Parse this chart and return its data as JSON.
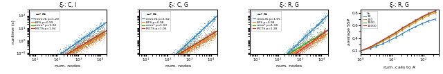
{
  "panels": [
    {
      "title": "$\\xi_F$: C, I",
      "xlabel": "num. nodes",
      "ylabel": "runtime (s)",
      "legend_title": "ax$^p$ fit",
      "lines": [
        {
          "label": "retro-fb p=1.20",
          "color": "#1f77b4",
          "p": 1.2,
          "a": 0.0002
        },
        {
          "label": "BFS p=0.99",
          "color": "#ff7f0e",
          "p": 0.99,
          "a": 0.0002
        },
        {
          "label": "retro* p=1.04",
          "color": "#2ca02c",
          "p": 1.04,
          "a": 0.0002
        },
        {
          "label": "MCTS p=1.04",
          "color": "#d62728",
          "p": 1.04,
          "a": 0.0002
        }
      ],
      "xlim": [
        5,
        20000
      ],
      "ylim": [
        0.08,
        300
      ]
    },
    {
      "title": "$\\xi_F$: C, G",
      "xlabel": "num. nodes",
      "ylabel": "runtime (s)",
      "legend_title": "ax$^p$ fit",
      "lines": [
        {
          "label": "retro-fb p=1.62",
          "color": "#1f77b4",
          "p": 1.62,
          "a": 1e-05
        },
        {
          "label": "BFS p=0.98",
          "color": "#ff7f0e",
          "p": 0.98,
          "a": 0.0002
        },
        {
          "label": "retro* p=1.03",
          "color": "#2ca02c",
          "p": 1.03,
          "a": 0.0002
        },
        {
          "label": "MCTS p=1.06",
          "color": "#d62728",
          "p": 1.06,
          "a": 0.00015
        }
      ],
      "xlim": [
        5,
        20000
      ],
      "ylim": [
        0.08,
        300
      ]
    },
    {
      "title": "$\\xi_F$: R, G",
      "xlabel": "num. nodes",
      "ylabel": "runtime (s)",
      "legend_title": "ax$^p$ fit",
      "lines": [
        {
          "label": "retro-fb p=1.65",
          "color": "#1f77b4",
          "p": 1.65,
          "a": 8e-06
        },
        {
          "label": "BFS p=0.98",
          "color": "#ff7f0e",
          "p": 0.98,
          "a": 0.0002
        },
        {
          "label": "retro* p=1.04",
          "color": "#2ca02c",
          "p": 1.04,
          "a": 0.0002
        },
        {
          "label": "MCTS p=1.28",
          "color": "#d62728",
          "p": 1.28,
          "a": 2e-05
        }
      ],
      "xlim": [
        5,
        20000
      ],
      "ylim": [
        0.08,
        300
      ]
    }
  ],
  "panel4": {
    "title": "$\\xi_F$: R, G",
    "xlabel": "num. calls to $R$",
    "ylabel": "average SSP",
    "xlim": [
      1.0,
      300
    ],
    "ylim": [
      0.15,
      0.85
    ],
    "k_values": [
      10,
      100,
      1000,
      10000
    ],
    "colors": [
      "#1f77b4",
      "#ff7f0e",
      "#2ca02c",
      "#d62728"
    ],
    "x_points": [
      1,
      2,
      3,
      5,
      8,
      13,
      21,
      34,
      55,
      89,
      144,
      233
    ],
    "sop_data": {
      "10": [
        0.2,
        0.24,
        0.27,
        0.31,
        0.36,
        0.41,
        0.47,
        0.53,
        0.58,
        0.63,
        0.67,
        0.7
      ],
      "100": [
        0.2,
        0.25,
        0.29,
        0.35,
        0.4,
        0.46,
        0.53,
        0.59,
        0.65,
        0.71,
        0.76,
        0.8
      ],
      "1000": [
        0.2,
        0.26,
        0.3,
        0.36,
        0.42,
        0.48,
        0.55,
        0.61,
        0.67,
        0.73,
        0.78,
        0.82
      ],
      "10000": [
        0.2,
        0.26,
        0.31,
        0.37,
        0.43,
        0.49,
        0.56,
        0.62,
        0.68,
        0.74,
        0.79,
        0.83
      ]
    }
  }
}
